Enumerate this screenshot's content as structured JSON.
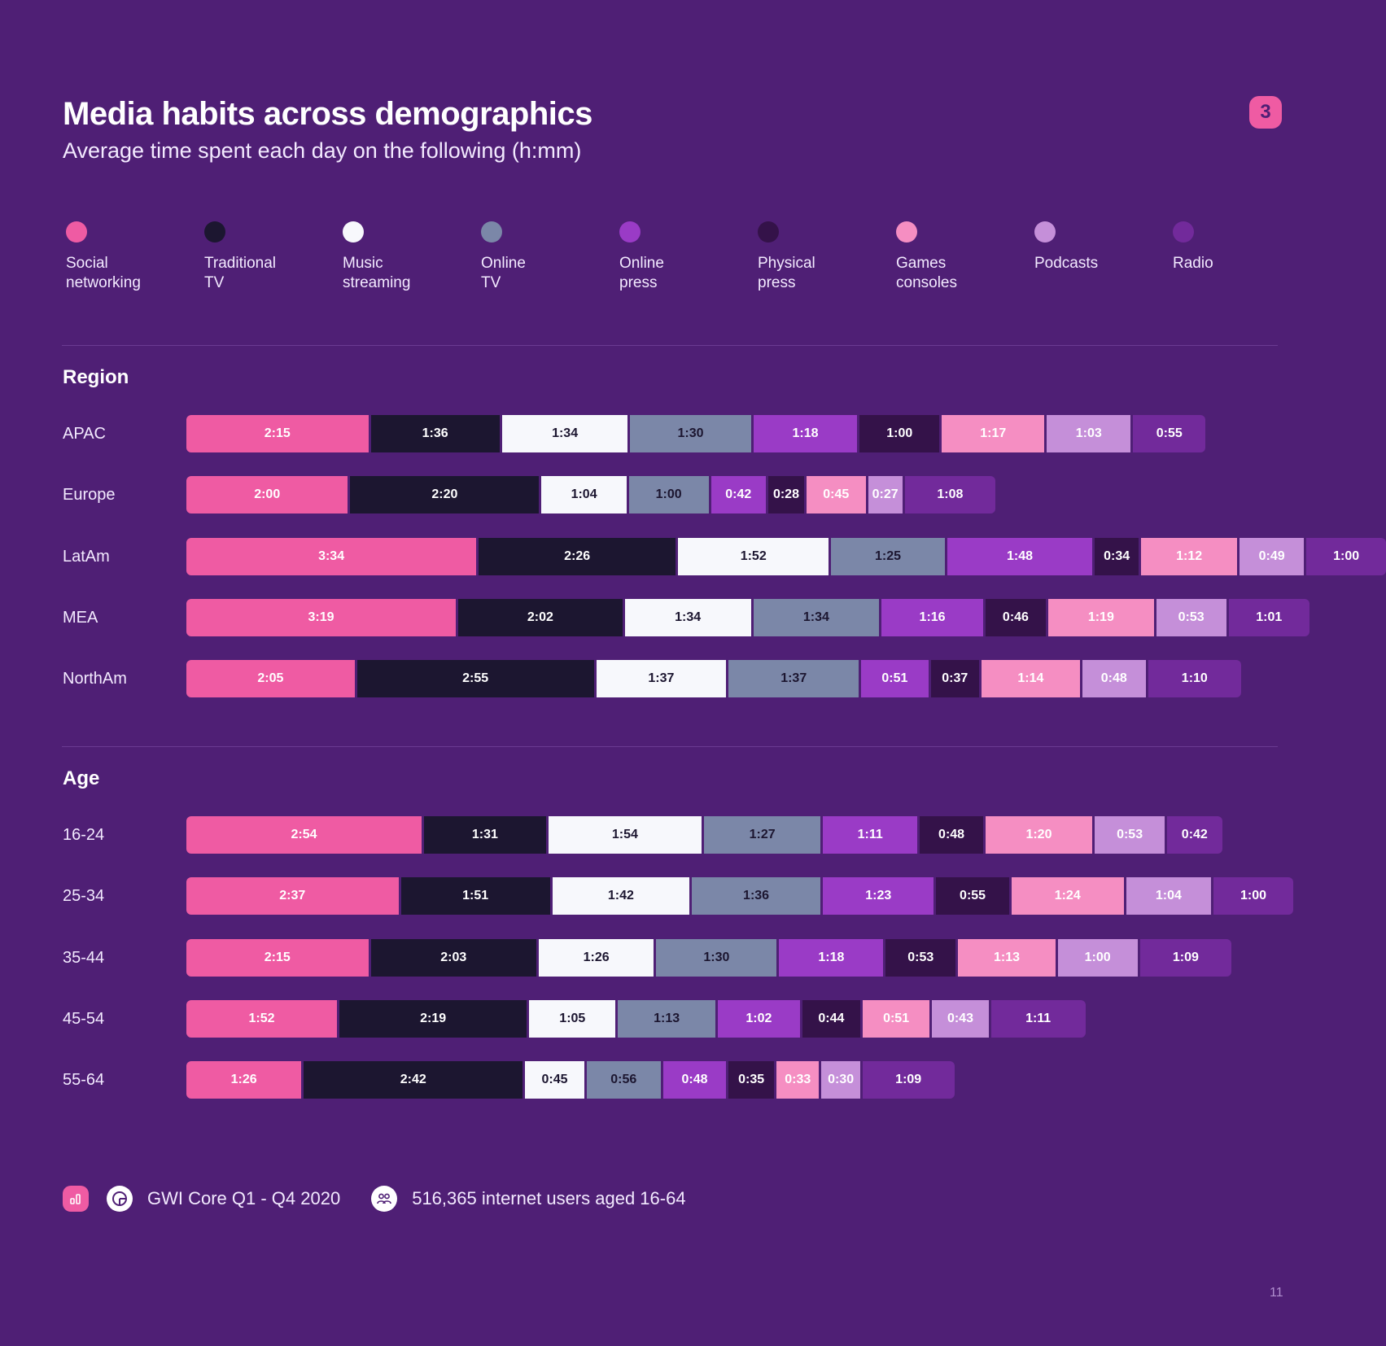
{
  "header": {
    "title": "Media habits across demographics",
    "subtitle": "Average time spent each day on the following (h:mm)",
    "badge": "3"
  },
  "colors": {
    "background": "#4f1f75",
    "accent": "#ef5ba3"
  },
  "chart_data": {
    "type": "bar",
    "orientation": "horizontal",
    "stacked": true,
    "unit": "h:mm",
    "series": [
      {
        "name": "Social networking",
        "color": "#ef5ba3",
        "text": "#ffffff"
      },
      {
        "name": "Traditional TV",
        "color": "#1c1630",
        "text": "#ffffff"
      },
      {
        "name": "Music streaming",
        "color": "#f7f8fc",
        "text": "#1c1630"
      },
      {
        "name": "Online TV",
        "color": "#7b87a8",
        "text": "#1c1630"
      },
      {
        "name": "Online press",
        "color": "#9a3bc6",
        "text": "#ffffff"
      },
      {
        "name": "Physical press",
        "color": "#341249",
        "text": "#ffffff"
      },
      {
        "name": "Games consoles",
        "color": "#f58ec2",
        "text": "#ffffff"
      },
      {
        "name": "Podcasts",
        "color": "#c58fd9",
        "text": "#ffffff"
      },
      {
        "name": "Radio",
        "color": "#722a9b",
        "text": "#ffffff"
      }
    ],
    "groups": [
      {
        "title": "Region",
        "rows": [
          {
            "label": "APAC",
            "values": [
              "2:15",
              "1:36",
              "1:34",
              "1:30",
              "1:18",
              "1:00",
              "1:17",
              "1:03",
              "0:55"
            ]
          },
          {
            "label": "Europe",
            "values": [
              "2:00",
              "2:20",
              "1:04",
              "1:00",
              "0:42",
              "0:28",
              "0:45",
              "0:27",
              "1:08"
            ]
          },
          {
            "label": "LatAm",
            "values": [
              "3:34",
              "2:26",
              "1:52",
              "1:25",
              "1:48",
              "0:34",
              "1:12",
              "0:49",
              "1:00"
            ]
          },
          {
            "label": "MEA",
            "values": [
              "3:19",
              "2:02",
              "1:34",
              "1:34",
              "1:16",
              "0:46",
              "1:19",
              "0:53",
              "1:01"
            ]
          },
          {
            "label": "NorthAm",
            "values": [
              "2:05",
              "2:55",
              "1:37",
              "1:37",
              "0:51",
              "0:37",
              "1:14",
              "0:48",
              "1:10"
            ]
          }
        ]
      },
      {
        "title": "Age",
        "rows": [
          {
            "label": "16-24",
            "values": [
              "2:54",
              "1:31",
              "1:54",
              "1:27",
              "1:11",
              "0:48",
              "1:20",
              "0:53",
              "0:42"
            ]
          },
          {
            "label": "25-34",
            "values": [
              "2:37",
              "1:51",
              "1:42",
              "1:36",
              "1:23",
              "0:55",
              "1:24",
              "1:04",
              "1:00"
            ]
          },
          {
            "label": "35-44",
            "values": [
              "2:15",
              "2:03",
              "1:26",
              "1:30",
              "1:18",
              "0:53",
              "1:13",
              "1:00",
              "1:09"
            ]
          },
          {
            "label": "45-54",
            "values": [
              "1:52",
              "2:19",
              "1:05",
              "1:13",
              "1:02",
              "0:44",
              "0:51",
              "0:43",
              "1:11"
            ]
          },
          {
            "label": "55-64",
            "values": [
              "1:26",
              "2:42",
              "0:45",
              "0:56",
              "0:48",
              "0:35",
              "0:33",
              "0:30",
              "1:09"
            ]
          }
        ]
      }
    ]
  },
  "footer": {
    "source": "GWI Core Q1 - Q4 2020",
    "sample": "516,365 internet users aged 16-64"
  },
  "page_number": "11"
}
